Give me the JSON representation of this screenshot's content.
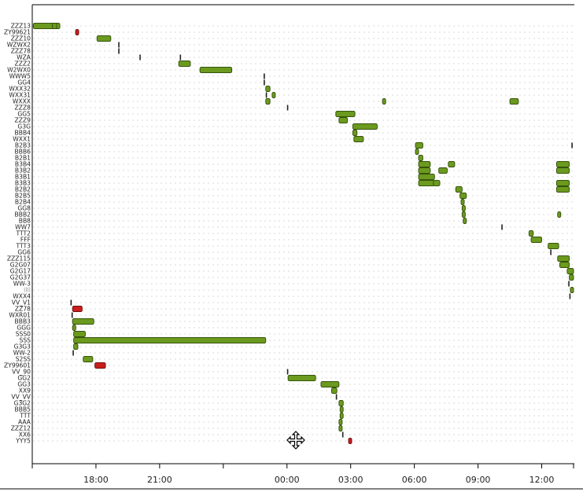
{
  "chart_data": {
    "type": "gantt",
    "title": "",
    "xlabel": "",
    "ylabel": "",
    "x_unit": "hours relative to 00:00",
    "x_range": [
      -12.0,
      13.5
    ],
    "x_ticks": [
      {
        "value": -9,
        "label": "18:00"
      },
      {
        "value": -6,
        "label": "21:00"
      },
      {
        "value": -3,
        "label": ""
      },
      {
        "value": 0,
        "label": "00:00"
      },
      {
        "value": 3,
        "label": "03:00"
      },
      {
        "value": 6,
        "label": "06:00"
      },
      {
        "value": 9,
        "label": "09:00"
      },
      {
        "value": 12,
        "label": "12:00"
      }
    ],
    "rows": [
      "ZZZ13",
      "ZY99621",
      "ZZZ10",
      "WZWX2",
      "ZZZ78",
      "WZA",
      "ZZZ2",
      "W2WX0",
      "WWW5",
      "GG4",
      "WXX32",
      "WXX31",
      "WXXX",
      "ZZZ8",
      "GG5",
      "ZZZ9",
      "G3G",
      "BBB4",
      "WXX1",
      "B2B3",
      "BBB6",
      "B2B1",
      "B3B4",
      "B3B2",
      "B3B1",
      "B3B3",
      "B2B2",
      "B2B5",
      "B2B4",
      "GG8",
      "BBB2",
      "BB8",
      "WW7",
      "TTT2",
      "FFF",
      "TTT3",
      "GG6",
      "ZZZ115",
      "G2G07",
      "G2G17",
      "G2G37",
      "WW-3",
      "IIII",
      "WXX4",
      "VV_V1",
      "ZZ78",
      "WXR01",
      "BBB3",
      "GGG",
      "SSS0",
      "SSS",
      "G3G3",
      "WW-2",
      "S2SS",
      "ZY99601",
      "VV_90",
      "GG2",
      "GG3",
      "XX9",
      "VV_VV",
      "G3G2",
      "BBB5",
      "TTT",
      "AAA",
      "ZZZ12",
      "XX6",
      "YYY5"
    ],
    "colors": {
      "green": "#6b9a1f",
      "red": "#c81e1e",
      "tick": "#222222"
    },
    "bars": [
      {
        "row": "ZZZ13",
        "start": -11.95,
        "end": -10.7,
        "color": "green"
      },
      {
        "row": "ZZZ13",
        "start": -11.05,
        "end": -10.85,
        "color": "green"
      },
      {
        "row": "ZY99621",
        "start": -9.96,
        "end": -9.84,
        "color": "red"
      },
      {
        "row": "ZZZ10",
        "start": -8.95,
        "end": -8.3,
        "color": "green"
      },
      {
        "row": "WZWX2",
        "start": -7.95,
        "end": -7.9,
        "color": "tick"
      },
      {
        "row": "ZZZ78",
        "start": -7.95,
        "end": -7.9,
        "color": "tick"
      },
      {
        "row": "WZA",
        "start": -6.95,
        "end": -6.9,
        "color": "tick"
      },
      {
        "row": "WZA",
        "start": -5.05,
        "end": -5.0,
        "color": "tick"
      },
      {
        "row": "ZZZ2",
        "start": -5.1,
        "end": -4.55,
        "color": "green"
      },
      {
        "row": "W2WX0",
        "start": -4.1,
        "end": -2.6,
        "color": "green"
      },
      {
        "row": "WWW5",
        "start": -1.1,
        "end": -1.02,
        "color": "tick"
      },
      {
        "row": "GG4",
        "start": -1.1,
        "end": -1.02,
        "color": "tick"
      },
      {
        "row": "WXX32",
        "start": -1.0,
        "end": -0.8,
        "color": "green"
      },
      {
        "row": "WXX31",
        "start": -1.0,
        "end": -0.9,
        "color": "tick"
      },
      {
        "row": "WXX31",
        "start": -0.7,
        "end": -0.55,
        "color": "green"
      },
      {
        "row": "WXXX",
        "start": -1.0,
        "end": -0.8,
        "color": "green"
      },
      {
        "row": "WXXX",
        "start": 4.5,
        "end": 4.65,
        "color": "green"
      },
      {
        "row": "WXXX",
        "start": 10.5,
        "end": 10.9,
        "color": "green"
      },
      {
        "row": "ZZZ8",
        "start": 0.0,
        "end": 0.05,
        "color": "tick"
      },
      {
        "row": "GG5",
        "start": 2.3,
        "end": 3.2,
        "color": "green"
      },
      {
        "row": "ZZZ9",
        "start": 2.45,
        "end": 2.85,
        "color": "green"
      },
      {
        "row": "G3G",
        "start": 3.1,
        "end": 4.25,
        "color": "green"
      },
      {
        "row": "BBB4",
        "start": 3.1,
        "end": 3.3,
        "color": "green"
      },
      {
        "row": "WXX1",
        "start": 3.15,
        "end": 3.6,
        "color": "green"
      },
      {
        "row": "B2B3",
        "start": 6.05,
        "end": 6.4,
        "color": "green"
      },
      {
        "row": "B2B3",
        "start": 13.4,
        "end": 13.45,
        "color": "tick"
      },
      {
        "row": "BBB6",
        "start": 6.05,
        "end": 6.2,
        "color": "green"
      },
      {
        "row": "B2B1",
        "start": 6.2,
        "end": 6.4,
        "color": "green"
      },
      {
        "row": "B3B4",
        "start": 6.2,
        "end": 6.75,
        "color": "green"
      },
      {
        "row": "B3B4",
        "start": 7.6,
        "end": 7.9,
        "color": "green"
      },
      {
        "row": "B3B4",
        "start": 12.7,
        "end": 13.3,
        "color": "green"
      },
      {
        "row": "B3B2",
        "start": 6.2,
        "end": 6.75,
        "color": "green"
      },
      {
        "row": "B3B2",
        "start": 7.15,
        "end": 7.55,
        "color": "green"
      },
      {
        "row": "B3B2",
        "start": 12.7,
        "end": 13.3,
        "color": "green"
      },
      {
        "row": "B3B1",
        "start": 6.2,
        "end": 6.95,
        "color": "green"
      },
      {
        "row": "B3B3",
        "start": 6.2,
        "end": 6.95,
        "color": "green"
      },
      {
        "row": "B3B3",
        "start": 6.9,
        "end": 7.2,
        "color": "green"
      },
      {
        "row": "B3B3",
        "start": 12.7,
        "end": 13.3,
        "color": "green"
      },
      {
        "row": "B2B2",
        "start": 7.95,
        "end": 8.25,
        "color": "green"
      },
      {
        "row": "B2B2",
        "start": 12.7,
        "end": 13.3,
        "color": "green"
      },
      {
        "row": "B2B5",
        "start": 8.15,
        "end": 8.45,
        "color": "green"
      },
      {
        "row": "B2B4",
        "start": 8.2,
        "end": 8.35,
        "color": "green"
      },
      {
        "row": "GG8",
        "start": 8.25,
        "end": 8.4,
        "color": "green"
      },
      {
        "row": "BBB2",
        "start": 8.25,
        "end": 8.4,
        "color": "green"
      },
      {
        "row": "BBB2",
        "start": 12.75,
        "end": 12.85,
        "color": "green"
      },
      {
        "row": "BB8",
        "start": 8.3,
        "end": 8.45,
        "color": "green"
      },
      {
        "row": "WW7",
        "start": 10.1,
        "end": 10.15,
        "color": "tick"
      },
      {
        "row": "TTT2",
        "start": 11.4,
        "end": 11.6,
        "color": "green"
      },
      {
        "row": "FFF",
        "start": 11.5,
        "end": 12.0,
        "color": "green"
      },
      {
        "row": "TTT3",
        "start": 12.3,
        "end": 12.8,
        "color": "green"
      },
      {
        "row": "GG6",
        "start": 12.4,
        "end": 12.5,
        "color": "tick"
      },
      {
        "row": "ZZZ115",
        "start": 12.75,
        "end": 13.3,
        "color": "green"
      },
      {
        "row": "G2G07",
        "start": 12.85,
        "end": 13.3,
        "color": "green"
      },
      {
        "row": "G2G17",
        "start": 13.2,
        "end": 13.5,
        "color": "green"
      },
      {
        "row": "G2G37",
        "start": 13.3,
        "end": 13.9,
        "color": "green"
      },
      {
        "row": "WW-3",
        "start": 13.25,
        "end": 13.3,
        "color": "tick"
      },
      {
        "row": "IIII",
        "start": 13.35,
        "end": 18.6,
        "color": "green"
      },
      {
        "row": "WXX4",
        "start": 13.3,
        "end": 13.4,
        "color": "tick"
      },
      {
        "row": "VV_V1",
        "start": 13.8,
        "end": 13.85,
        "color": "tick"
      },
      {
        "row": "ZZ78",
        "start": 13.9,
        "end": 14.35,
        "color": "red"
      },
      {
        "row": "WXR01",
        "start": 13.85,
        "end": 13.9,
        "color": "tick"
      },
      {
        "row": "BBB3",
        "start": 13.9,
        "end": 14.9,
        "color": "green"
      },
      {
        "row": "GGG",
        "start": 13.9,
        "end": 14.05,
        "color": "green"
      },
      {
        "row": "SSS0",
        "start": 13.95,
        "end": 14.5,
        "color": "green"
      },
      {
        "row": "SSS",
        "start": 13.95,
        "end": 23.0,
        "color": "green"
      },
      {
        "row": "G3G3",
        "start": 13.95,
        "end": 14.15,
        "color": "green"
      },
      {
        "row": "WW-2",
        "start": 13.9,
        "end": 13.95,
        "color": "tick"
      },
      {
        "row": "S2SS",
        "start": 14.4,
        "end": 14.85,
        "color": "green"
      },
      {
        "row": "ZY99601",
        "start": 14.95,
        "end": 15.45,
        "color": "red"
      },
      {
        "row": "VV_90",
        "start": 24.0,
        "end": 24.05,
        "color": "tick"
      },
      {
        "row": "GG2",
        "start": 24.05,
        "end": 25.35,
        "color": "green"
      },
      {
        "row": "GG3",
        "start": 25.6,
        "end": 26.45,
        "color": "green"
      },
      {
        "row": "XX9",
        "start": 26.1,
        "end": 26.35,
        "color": "green"
      },
      {
        "row": "VV_VV",
        "start": 26.3,
        "end": 26.35,
        "color": "tick"
      },
      {
        "row": "G3G2",
        "start": 26.45,
        "end": 26.65,
        "color": "green"
      },
      {
        "row": "BBB5",
        "start": 26.5,
        "end": 26.6,
        "color": "green"
      },
      {
        "row": "TTT",
        "start": 26.5,
        "end": 26.6,
        "color": "green"
      },
      {
        "row": "AAA",
        "start": 26.45,
        "end": 26.6,
        "color": "green"
      },
      {
        "row": "ZZZ12",
        "start": 26.45,
        "end": 26.6,
        "color": "green"
      },
      {
        "row": "XX6",
        "start": 26.6,
        "end": 26.65,
        "color": "tick"
      },
      {
        "row": "YYY5",
        "start": 26.9,
        "end": 27.05,
        "color": "red"
      }
    ],
    "grid": true
  },
  "icons": {
    "cursor": "move-cursor-icon"
  }
}
